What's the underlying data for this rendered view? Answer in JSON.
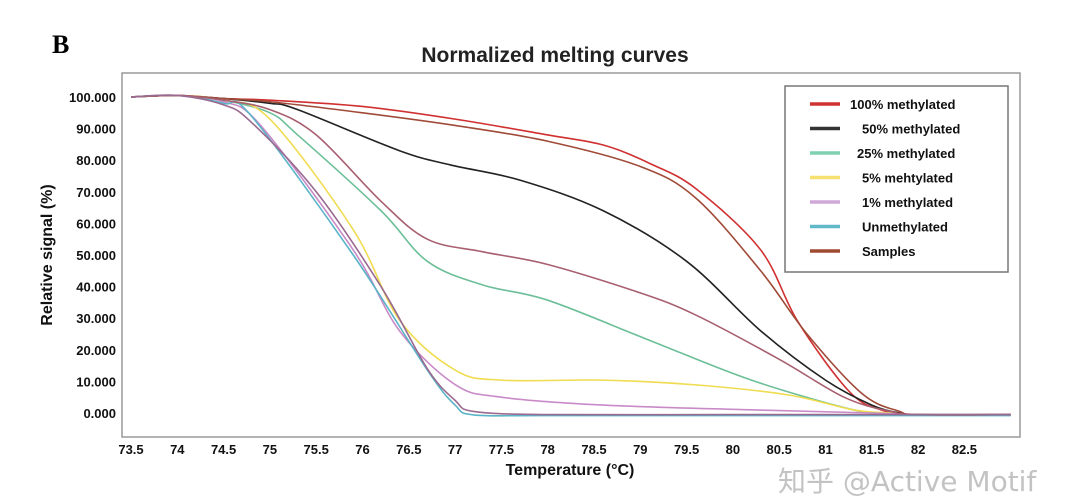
{
  "panel_label": "B",
  "watermark": "知乎 @Active Motif",
  "chart_data": {
    "type": "line",
    "title": "Normalized melting curves",
    "xlabel": "Temperature (°C)",
    "ylabel": "Relative signal (%)",
    "xlim": [
      73.4,
      83.1
    ],
    "ylim": [
      -7,
      107
    ],
    "xticks": [
      "73.5",
      "74",
      "74.5",
      "75",
      "75.5",
      "76",
      "76.5",
      "77",
      "77.5",
      "78",
      "78.5",
      "79",
      "79.5",
      "80",
      "80.5",
      "81",
      "81.5",
      "82",
      "82.5"
    ],
    "yticks": [
      "0.000",
      "10.000",
      "20.000",
      "30.000",
      "40.000",
      "50.000",
      "60.000",
      "70.000",
      "80.000",
      "90.000",
      "100.000"
    ],
    "grid": false,
    "legend_position": "top-right",
    "series": [
      {
        "name": "100% methylated",
        "color": "#d03030",
        "x": [
          73.5,
          74,
          74.5,
          75,
          76,
          77,
          78,
          78.6,
          79.1,
          79.6,
          80.3,
          80.7,
          81.25,
          81.6,
          82,
          83
        ],
        "y": [
          100,
          100.5,
          99.5,
          99,
          97,
          93,
          88,
          84.8,
          79,
          71,
          51.6,
          29,
          7,
          1,
          -0.5,
          -0.5
        ]
      },
      {
        "name": "50% methylated",
        "color": "#222222",
        "x": [
          73.5,
          74,
          74.5,
          75,
          75.3,
          76.4,
          76.95,
          77.7,
          78.6,
          79.5,
          80.3,
          81,
          81.5,
          81.8,
          82,
          83
        ],
        "y": [
          100,
          100.5,
          99.5,
          98,
          96,
          83,
          78.5,
          73.7,
          64,
          48,
          26,
          10.4,
          2.5,
          0,
          -0.5,
          -0.5
        ]
      },
      {
        "name": "25% methylated",
        "color": "#6cbf98",
        "x": [
          73.5,
          74,
          74.5,
          75,
          75.3,
          76.2,
          76.7,
          77.3,
          78,
          79.1,
          80.2,
          81.3,
          81.7,
          82,
          83
        ],
        "y": [
          100,
          100.5,
          99,
          95,
          88,
          64,
          48,
          40.5,
          35.7,
          23,
          10.4,
          1,
          0,
          -0.5,
          -0.5
        ]
      },
      {
        "name": "5% mehtylated",
        "color": "#f0dc50",
        "x": [
          73.5,
          74,
          74.5,
          75,
          75.9,
          76.4,
          77,
          77.5,
          78.6,
          79.6,
          80.6,
          81.3,
          81.7,
          82,
          83
        ],
        "y": [
          100,
          100.5,
          99,
          93,
          58,
          29.4,
          13.6,
          10.4,
          10.4,
          8.9,
          5.7,
          1,
          0,
          -0.5,
          -0.5
        ]
      },
      {
        "name": "1% methylated",
        "color": "#c98ac8",
        "x": [
          73.5,
          74,
          74.5,
          74.9,
          75.9,
          76.4,
          77,
          77.5,
          78.6,
          80.2,
          81.5,
          82,
          83
        ],
        "y": [
          100,
          100.5,
          98.5,
          91,
          51.6,
          26,
          9,
          5,
          2.5,
          1,
          0,
          -0.5,
          -0.5
        ]
      },
      {
        "name": "Unmethylated",
        "color": "#5ab4c8",
        "x": [
          73.5,
          74,
          74.5,
          74.8,
          75.9,
          76.7,
          77,
          77.2,
          78,
          80,
          82,
          83
        ],
        "y": [
          100,
          100.5,
          98,
          94,
          50,
          13.6,
          2.5,
          -0.6,
          -0.8,
          -0.8,
          -0.8,
          -0.8
        ]
      },
      {
        "name": "Samples",
        "color": "#a04a38",
        "x": [
          73.5,
          74,
          74.5,
          75,
          76,
          77,
          78,
          79,
          79.6,
          80.3,
          80.8,
          81.4,
          81.8,
          82,
          83
        ],
        "y": [
          100,
          100.5,
          99.5,
          98.5,
          95,
          91,
          86,
          78,
          68,
          45,
          25,
          6,
          0.5,
          -0.5,
          -0.5
        ]
      },
      {
        "name": "",
        "color": "#a86070",
        "x": [
          73.5,
          74,
          74.5,
          75,
          75.5,
          76.2,
          76.7,
          77.3,
          78,
          79,
          79.6,
          80.5,
          81.2,
          81.7,
          82,
          83
        ],
        "y": [
          100,
          100.5,
          99,
          96,
          88,
          67,
          55,
          51,
          47,
          38,
          31,
          17,
          5,
          0.5,
          -0.5,
          -0.5
        ]
      },
      {
        "name": "",
        "color": "#9a6a90",
        "x": [
          73.5,
          74,
          74.5,
          74.8,
          75.5,
          76.2,
          76.7,
          77,
          77.2,
          78,
          80,
          82,
          83
        ],
        "y": [
          100,
          100.5,
          97.5,
          92,
          70,
          40,
          14,
          4,
          0.5,
          -0.5,
          -0.5,
          -0.5,
          -0.5
        ]
      }
    ],
    "legend": [
      {
        "label": "100% methylated",
        "color": "#d03030"
      },
      {
        "label": "50% methylated",
        "color": "#333333"
      },
      {
        "label": "25% methylated",
        "color": "#7fd0b0"
      },
      {
        "label": "5% mehtylated",
        "color": "#f5e070"
      },
      {
        "label": "1% methylated",
        "color": "#d0a8d8"
      },
      {
        "label": "Unmethylated",
        "color": "#60b8c8"
      },
      {
        "label": "Samples",
        "color": "#a04a30"
      }
    ]
  }
}
